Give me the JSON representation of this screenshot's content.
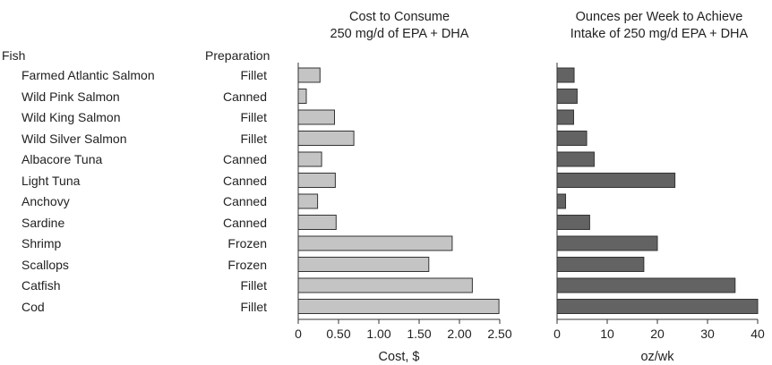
{
  "headers": {
    "fish": "Fish",
    "preparation": "Preparation"
  },
  "rows": [
    {
      "fish": "Farmed Atlantic Salmon",
      "preparation": "Fillet"
    },
    {
      "fish": "Wild Pink Salmon",
      "preparation": "Canned"
    },
    {
      "fish": "Wild King Salmon",
      "preparation": "Fillet"
    },
    {
      "fish": "Wild Silver Salmon",
      "preparation": "Fillet"
    },
    {
      "fish": "Albacore Tuna",
      "preparation": "Canned"
    },
    {
      "fish": "Light Tuna",
      "preparation": "Canned"
    },
    {
      "fish": "Anchovy",
      "preparation": "Canned"
    },
    {
      "fish": "Sardine",
      "preparation": "Canned"
    },
    {
      "fish": "Shrimp",
      "preparation": "Frozen"
    },
    {
      "fish": "Scallops",
      "preparation": "Frozen"
    },
    {
      "fish": "Catfish",
      "preparation": "Fillet"
    },
    {
      "fish": "Cod",
      "preparation": "Fillet"
    }
  ],
  "chart_data": [
    {
      "type": "bar",
      "orientation": "horizontal",
      "title_line1": "Cost to Consume",
      "title_line2": "250 mg/d of EPA + DHA",
      "xlabel": "Cost, $",
      "xlim": [
        0,
        2.5
      ],
      "ticks": [
        0,
        0.5,
        1.0,
        1.5,
        2.0,
        2.5
      ],
      "tick_labels": [
        "0",
        "0.50",
        "1.00",
        "1.50",
        "2.00",
        "2.50"
      ],
      "values": [
        0.27,
        0.1,
        0.45,
        0.69,
        0.29,
        0.46,
        0.24,
        0.47,
        1.91,
        1.62,
        2.16,
        2.49
      ],
      "bar_color": "#c4c4c4"
    },
    {
      "type": "bar",
      "orientation": "horizontal",
      "title_line1": "Ounces per Week to Achieve",
      "title_line2": "Intake of 250 mg/d EPA + DHA",
      "xlabel": "oz/wk",
      "xlim": [
        0,
        40
      ],
      "ticks": [
        0,
        10,
        20,
        30,
        40
      ],
      "tick_labels": [
        "0",
        "10",
        "20",
        "30",
        "40"
      ],
      "values": [
        3.4,
        4.0,
        3.3,
        5.9,
        7.4,
        23.5,
        1.7,
        6.5,
        20.0,
        17.3,
        35.5,
        40.0
      ],
      "bar_color": "#636363"
    }
  ]
}
